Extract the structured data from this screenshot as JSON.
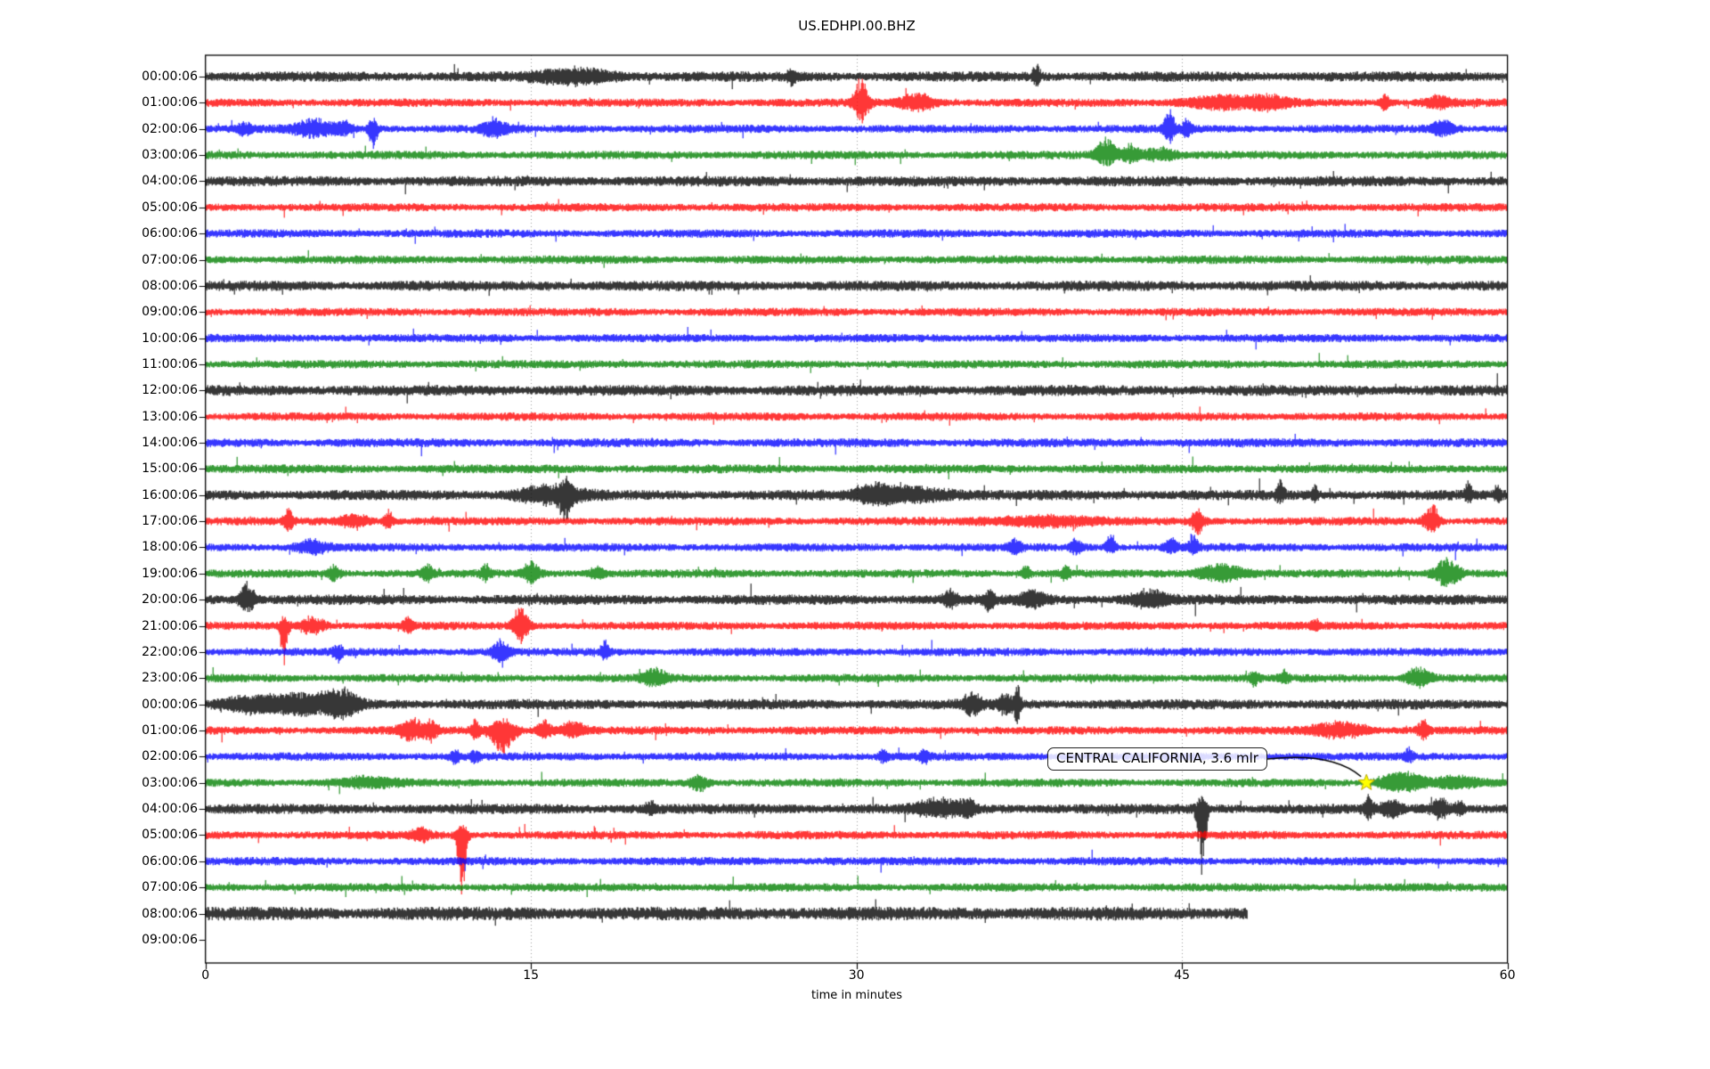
{
  "title": "US.EDHPI.00.BHZ",
  "x_axis": {
    "title": "time in minutes",
    "range_minutes": [
      0,
      60
    ],
    "ticks": [
      {
        "label": "0",
        "minute": 0
      },
      {
        "label": "15",
        "minute": 15
      },
      {
        "label": "30",
        "minute": 30
      },
      {
        "label": "45",
        "minute": 45
      },
      {
        "label": "60",
        "minute": 60
      }
    ],
    "gridlines_minutes": [
      15,
      30,
      45
    ]
  },
  "annotation": {
    "text": "CENTRAL CALIFORNIA, 3.6 mlr",
    "row_index": 27,
    "minute": 53.5,
    "star_color": "#ffff00",
    "star_edge_color": "#b8a800",
    "arrow_color": "#000000"
  },
  "colors": {
    "trace_cycle": [
      "#000000",
      "#ff0000",
      "#0000ff",
      "#008000"
    ],
    "grid": "#999999",
    "frame": "#000000",
    "background": "#ffffff"
  },
  "chart_data": {
    "type": "line",
    "subtype": "seismogram-dayplot",
    "title": "US.EDHPI.00.BHZ",
    "xlabel": "time in minutes",
    "x_range_minutes": [
      0,
      60
    ],
    "minutes_per_row": 60,
    "rows": [
      {
        "label": "00:00:06",
        "color": "#000000",
        "base": 4.2,
        "end_min": 60,
        "events": [
          {
            "m": 17.0,
            "w": 2.5,
            "up": 7,
            "dn": 7
          },
          {
            "m": 27.0,
            "w": 0.3,
            "up": 6,
            "dn": 7
          },
          {
            "m": 38.3,
            "w": 0.25,
            "up": 14,
            "dn": 8
          }
        ]
      },
      {
        "label": "01:00:06",
        "color": "#ff0000",
        "base": 3.4,
        "end_min": 60,
        "events": [
          {
            "m": 30.2,
            "w": 0.5,
            "up": 26,
            "dn": 20
          },
          {
            "m": 32.8,
            "w": 1.2,
            "up": 9,
            "dn": 8
          },
          {
            "m": 46.8,
            "w": 2.5,
            "up": 7,
            "dn": 6
          },
          {
            "m": 49.0,
            "w": 1.5,
            "up": 6,
            "dn": 5
          },
          {
            "m": 54.3,
            "w": 0.3,
            "up": 9,
            "dn": 8
          },
          {
            "m": 56.8,
            "w": 0.8,
            "up": 7,
            "dn": 6
          }
        ]
      },
      {
        "label": "02:00:06",
        "color": "#0000ff",
        "base": 3.4,
        "end_min": 60,
        "events": [
          {
            "m": 1.8,
            "w": 0.5,
            "up": 6,
            "dn": 6
          },
          {
            "m": 5.0,
            "w": 1.4,
            "up": 9,
            "dn": 8
          },
          {
            "m": 6.4,
            "w": 0.5,
            "up": 7,
            "dn": 6
          },
          {
            "m": 7.7,
            "w": 0.3,
            "up": 10,
            "dn": 22
          },
          {
            "m": 13.3,
            "w": 0.8,
            "up": 10,
            "dn": 9
          },
          {
            "m": 44.4,
            "w": 0.35,
            "up": 20,
            "dn": 14
          },
          {
            "m": 45.2,
            "w": 0.3,
            "up": 10,
            "dn": 8
          },
          {
            "m": 57.0,
            "w": 0.8,
            "up": 9,
            "dn": 7
          }
        ]
      },
      {
        "label": "03:00:06",
        "color": "#008000",
        "base": 3.4,
        "end_min": 60,
        "events": [
          {
            "m": 41.5,
            "w": 0.7,
            "up": 18,
            "dn": 10
          },
          {
            "m": 42.6,
            "w": 0.6,
            "up": 10,
            "dn": 7
          },
          {
            "m": 43.9,
            "w": 1.2,
            "up": 7,
            "dn": 6
          }
        ]
      },
      {
        "label": "04:00:06",
        "color": "#000000",
        "base": 4.2,
        "end_min": 60,
        "events": []
      },
      {
        "label": "05:00:06",
        "color": "#ff0000",
        "base": 3.4,
        "end_min": 60,
        "events": []
      },
      {
        "label": "06:00:06",
        "color": "#0000ff",
        "base": 3.4,
        "end_min": 60,
        "events": []
      },
      {
        "label": "07:00:06",
        "color": "#008000",
        "base": 3.4,
        "end_min": 60,
        "events": []
      },
      {
        "label": "08:00:06",
        "color": "#000000",
        "base": 4.2,
        "end_min": 60,
        "events": []
      },
      {
        "label": "09:00:06",
        "color": "#ff0000",
        "base": 3.4,
        "end_min": 60,
        "events": []
      },
      {
        "label": "10:00:06",
        "color": "#0000ff",
        "base": 3.4,
        "end_min": 60,
        "events": []
      },
      {
        "label": "11:00:06",
        "color": "#008000",
        "base": 3.4,
        "end_min": 60,
        "events": []
      },
      {
        "label": "12:00:06",
        "color": "#000000",
        "base": 4.4,
        "end_min": 60,
        "events": []
      },
      {
        "label": "13:00:06",
        "color": "#ff0000",
        "base": 3.4,
        "end_min": 60,
        "events": []
      },
      {
        "label": "14:00:06",
        "color": "#0000ff",
        "base": 3.6,
        "end_min": 60,
        "events": []
      },
      {
        "label": "15:00:06",
        "color": "#008000",
        "base": 3.6,
        "end_min": 60,
        "events": []
      },
      {
        "label": "16:00:06",
        "color": "#000000",
        "base": 4.2,
        "end_min": 60,
        "events": [
          {
            "m": 15.8,
            "w": 2.2,
            "up": 9,
            "dn": 9
          },
          {
            "m": 16.6,
            "w": 0.4,
            "up": 12,
            "dn": 24
          },
          {
            "m": 30.8,
            "w": 1.0,
            "up": 8,
            "dn": 7
          },
          {
            "m": 32.3,
            "w": 2.8,
            "up": 8,
            "dn": 7
          },
          {
            "m": 49.5,
            "w": 0.25,
            "up": 16,
            "dn": 6
          },
          {
            "m": 51.1,
            "w": 0.2,
            "up": 9,
            "dn": 5
          },
          {
            "m": 58.2,
            "w": 0.25,
            "up": 13,
            "dn": 5
          },
          {
            "m": 59.5,
            "w": 0.2,
            "up": 8,
            "dn": 6
          }
        ]
      },
      {
        "label": "17:00:06",
        "color": "#ff0000",
        "base": 3.4,
        "end_min": 60,
        "events": [
          {
            "m": 3.8,
            "w": 0.3,
            "up": 13,
            "dn": 9
          },
          {
            "m": 6.8,
            "w": 1.0,
            "up": 7,
            "dn": 6
          },
          {
            "m": 8.4,
            "w": 0.3,
            "up": 12,
            "dn": 8
          },
          {
            "m": 38.5,
            "w": 3.5,
            "up": 5,
            "dn": 5
          },
          {
            "m": 45.7,
            "w": 0.4,
            "up": 12,
            "dn": 14
          },
          {
            "m": 56.5,
            "w": 0.5,
            "up": 18,
            "dn": 12
          }
        ]
      },
      {
        "label": "18:00:06",
        "color": "#0000ff",
        "base": 3.4,
        "end_min": 60,
        "events": [
          {
            "m": 4.9,
            "w": 1.0,
            "up": 7,
            "dn": 6
          },
          {
            "m": 37.3,
            "w": 0.4,
            "up": 8,
            "dn": 6
          },
          {
            "m": 40.1,
            "w": 0.4,
            "up": 8,
            "dn": 6
          },
          {
            "m": 41.7,
            "w": 0.3,
            "up": 16,
            "dn": 7
          },
          {
            "m": 44.5,
            "w": 0.4,
            "up": 9,
            "dn": 6
          },
          {
            "m": 45.5,
            "w": 0.3,
            "up": 14,
            "dn": 7
          }
        ]
      },
      {
        "label": "19:00:06",
        "color": "#008000",
        "base": 3.4,
        "end_min": 60,
        "events": [
          {
            "m": 5.9,
            "w": 0.4,
            "up": 8,
            "dn": 7
          },
          {
            "m": 10.2,
            "w": 0.4,
            "up": 9,
            "dn": 7
          },
          {
            "m": 12.9,
            "w": 0.3,
            "up": 9,
            "dn": 7
          },
          {
            "m": 15.0,
            "w": 0.5,
            "up": 13,
            "dn": 11
          },
          {
            "m": 18.0,
            "w": 0.5,
            "up": 6,
            "dn": 5
          },
          {
            "m": 37.8,
            "w": 0.3,
            "up": 8,
            "dn": 6
          },
          {
            "m": 39.6,
            "w": 0.3,
            "up": 8,
            "dn": 6
          },
          {
            "m": 46.8,
            "w": 1.5,
            "up": 10,
            "dn": 8
          },
          {
            "m": 57.2,
            "w": 0.8,
            "up": 18,
            "dn": 16
          }
        ]
      },
      {
        "label": "20:00:06",
        "color": "#000000",
        "base": 4.2,
        "end_min": 60,
        "events": [
          {
            "m": 1.9,
            "w": 0.5,
            "up": 18,
            "dn": 14
          },
          {
            "m": 34.3,
            "w": 0.5,
            "up": 8,
            "dn": 7
          },
          {
            "m": 36.1,
            "w": 0.3,
            "up": 8,
            "dn": 12
          },
          {
            "m": 38.1,
            "w": 0.8,
            "up": 9,
            "dn": 7
          },
          {
            "m": 43.5,
            "w": 1.2,
            "up": 9,
            "dn": 8
          }
        ]
      },
      {
        "label": "21:00:06",
        "color": "#ff0000",
        "base": 3.4,
        "end_min": 60,
        "events": [
          {
            "m": 3.6,
            "w": 0.25,
            "up": 8,
            "dn": 46
          },
          {
            "m": 4.9,
            "w": 0.8,
            "up": 9,
            "dn": 8
          },
          {
            "m": 9.3,
            "w": 0.3,
            "up": 10,
            "dn": 8
          },
          {
            "m": 14.5,
            "w": 0.5,
            "up": 22,
            "dn": 18
          },
          {
            "m": 51.1,
            "w": 0.3,
            "up": 6,
            "dn": 5
          }
        ]
      },
      {
        "label": "22:00:06",
        "color": "#0000ff",
        "base": 3.4,
        "end_min": 60,
        "events": [
          {
            "m": 6.1,
            "w": 0.3,
            "up": 7,
            "dn": 9
          },
          {
            "m": 13.6,
            "w": 0.5,
            "up": 12,
            "dn": 14
          },
          {
            "m": 18.4,
            "w": 0.3,
            "up": 10,
            "dn": 8
          }
        ]
      },
      {
        "label": "23:00:06",
        "color": "#008000",
        "base": 3.4,
        "end_min": 60,
        "events": [
          {
            "m": 20.7,
            "w": 0.8,
            "up": 9,
            "dn": 8
          },
          {
            "m": 48.3,
            "w": 0.3,
            "up": 6,
            "dn": 8
          },
          {
            "m": 49.7,
            "w": 0.3,
            "up": 7,
            "dn": 5
          },
          {
            "m": 55.9,
            "w": 0.8,
            "up": 12,
            "dn": 10
          }
        ]
      },
      {
        "label": "00:00:06",
        "color": "#000000",
        "base": 4.2,
        "end_min": 60,
        "events": [
          {
            "m": 2.0,
            "w": 2.0,
            "up": 7,
            "dn": 7
          },
          {
            "m": 4.6,
            "w": 2.5,
            "up": 10,
            "dn": 10
          },
          {
            "m": 6.3,
            "w": 1.0,
            "up": 12,
            "dn": 12
          },
          {
            "m": 35.3,
            "w": 0.6,
            "up": 12,
            "dn": 12
          },
          {
            "m": 36.9,
            "w": 0.6,
            "up": 9,
            "dn": 9
          },
          {
            "m": 37.4,
            "w": 0.2,
            "up": 20,
            "dn": 20
          }
        ]
      },
      {
        "label": "01:00:06",
        "color": "#ff0000",
        "base": 3.4,
        "end_min": 60,
        "events": [
          {
            "m": 9.5,
            "w": 0.8,
            "up": 12,
            "dn": 10
          },
          {
            "m": 10.4,
            "w": 0.5,
            "up": 8,
            "dn": 7
          },
          {
            "m": 12.4,
            "w": 0.3,
            "up": 10,
            "dn": 8
          },
          {
            "m": 13.7,
            "w": 0.8,
            "up": 12,
            "dn": 26
          },
          {
            "m": 15.6,
            "w": 0.5,
            "up": 10,
            "dn": 8
          },
          {
            "m": 16.9,
            "w": 0.8,
            "up": 9,
            "dn": 7
          },
          {
            "m": 52.3,
            "w": 1.8,
            "up": 8,
            "dn": 7
          },
          {
            "m": 56.1,
            "w": 0.4,
            "up": 10,
            "dn": 8
          }
        ]
      },
      {
        "label": "02:00:06",
        "color": "#0000ff",
        "base": 3.4,
        "end_min": 60,
        "events": [
          {
            "m": 11.5,
            "w": 0.3,
            "up": 5,
            "dn": 7
          },
          {
            "m": 12.4,
            "w": 0.3,
            "up": 5,
            "dn": 7
          },
          {
            "m": 31.2,
            "w": 0.3,
            "up": 6,
            "dn": 5
          },
          {
            "m": 33.1,
            "w": 0.3,
            "up": 5,
            "dn": 7
          },
          {
            "m": 55.4,
            "w": 0.3,
            "up": 8,
            "dn": 5
          }
        ]
      },
      {
        "label": "03:00:06",
        "color": "#008000",
        "base": 3.4,
        "end_min": 60,
        "events": [
          {
            "m": 7.5,
            "w": 2.0,
            "up": 5,
            "dn": 4
          },
          {
            "m": 22.7,
            "w": 0.6,
            "up": 7,
            "dn": 9
          },
          {
            "m": 54.6,
            "w": 1.0,
            "up": 8,
            "dn": 6
          },
          {
            "m": 55.5,
            "w": 1.0,
            "up": 9,
            "dn": 7
          },
          {
            "m": 57.6,
            "w": 1.5,
            "up": 6,
            "dn": 5
          }
        ]
      },
      {
        "label": "04:00:06",
        "color": "#000000",
        "base": 4.2,
        "end_min": 60,
        "events": [
          {
            "m": 20.5,
            "w": 0.4,
            "up": 6,
            "dn": 5
          },
          {
            "m": 33.8,
            "w": 1.5,
            "up": 9,
            "dn": 8
          },
          {
            "m": 35.1,
            "w": 0.5,
            "up": 8,
            "dn": 7
          },
          {
            "m": 45.9,
            "w": 0.3,
            "up": 14,
            "dn": 74
          },
          {
            "m": 53.6,
            "w": 0.3,
            "up": 12,
            "dn": 8
          },
          {
            "m": 54.6,
            "w": 0.6,
            "up": 9,
            "dn": 8
          },
          {
            "m": 56.9,
            "w": 0.6,
            "up": 11,
            "dn": 9
          },
          {
            "m": 57.8,
            "w": 0.3,
            "up": 8,
            "dn": 6
          }
        ]
      },
      {
        "label": "05:00:06",
        "color": "#ff0000",
        "base": 3.4,
        "end_min": 60,
        "events": [
          {
            "m": 9.9,
            "w": 0.6,
            "up": 7,
            "dn": 6
          },
          {
            "m": 11.8,
            "w": 0.3,
            "up": 12,
            "dn": 68
          }
        ]
      },
      {
        "label": "06:00:06",
        "color": "#0000ff",
        "base": 3.4,
        "end_min": 60,
        "events": []
      },
      {
        "label": "07:00:06",
        "color": "#008000",
        "base": 3.4,
        "end_min": 60,
        "events": []
      },
      {
        "label": "08:00:06",
        "color": "#000000",
        "base": 5.5,
        "end_min": 48,
        "events": []
      },
      {
        "label": "09:00:06",
        "color": "#ff0000",
        "base": 0,
        "end_min": 0,
        "events": []
      }
    ]
  }
}
